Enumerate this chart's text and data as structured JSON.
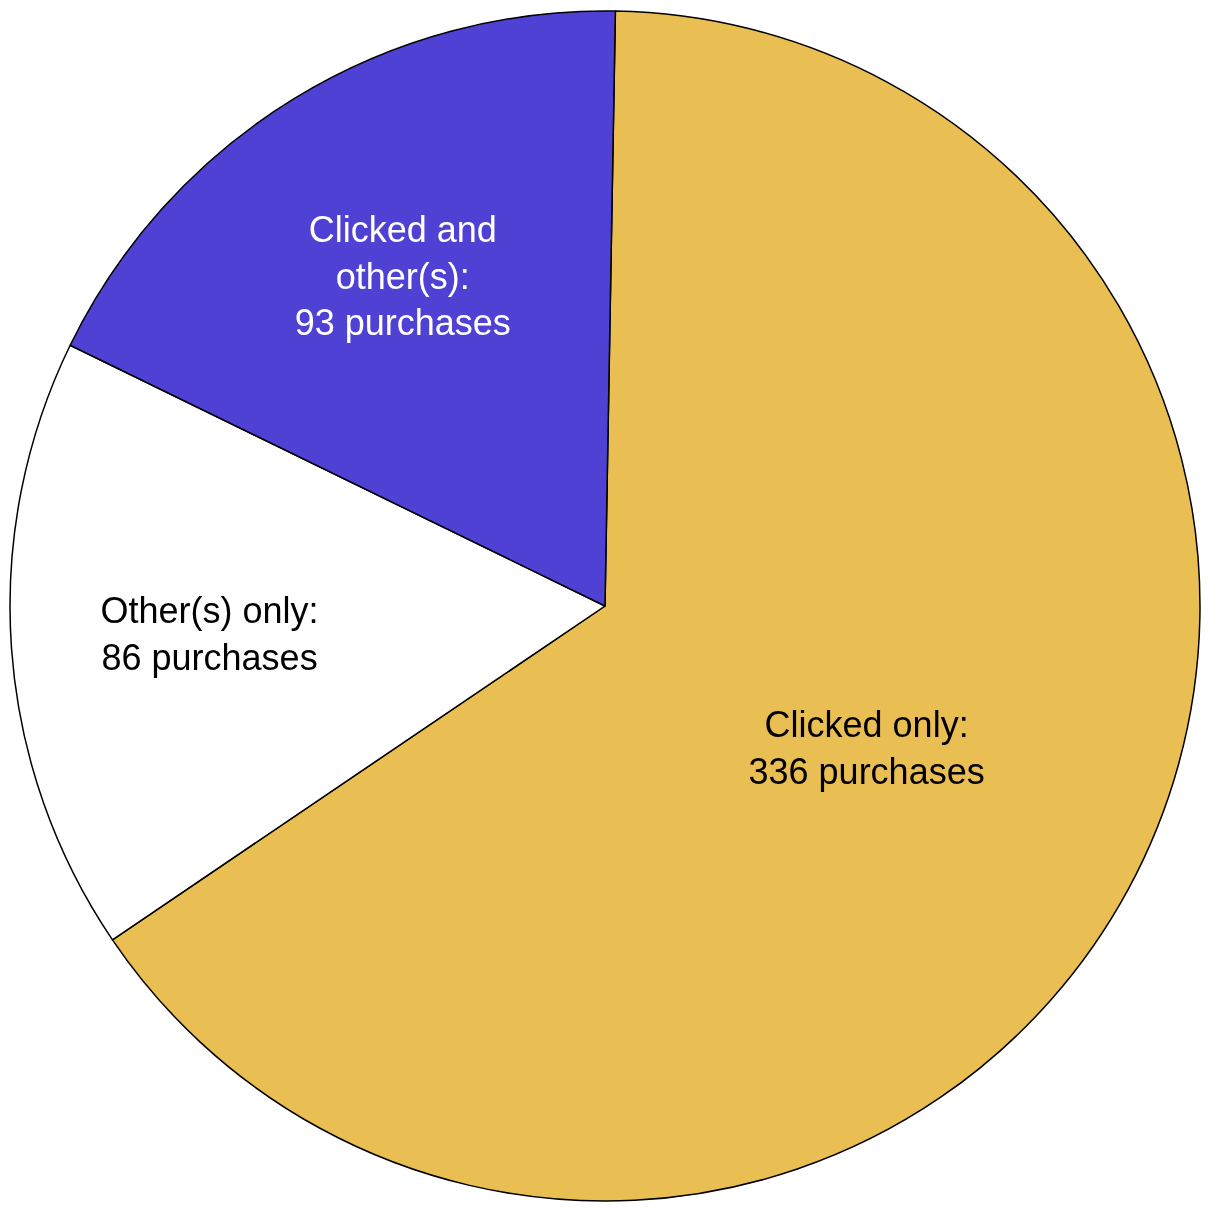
{
  "chart_data": {
    "type": "pie",
    "categories": [
      null,
      null,
      null
    ],
    "values": [
      336,
      86,
      93
    ],
    "value_labels": [
      "Clicked only: 336 purchases",
      "Other(s) only: 86 purchases",
      "Clicked and other(s): 93 purchases"
    ],
    "colors": [
      "#e9be52",
      "#ffffff",
      "#4f41d3"
    ],
    "legend": false
  }
}
